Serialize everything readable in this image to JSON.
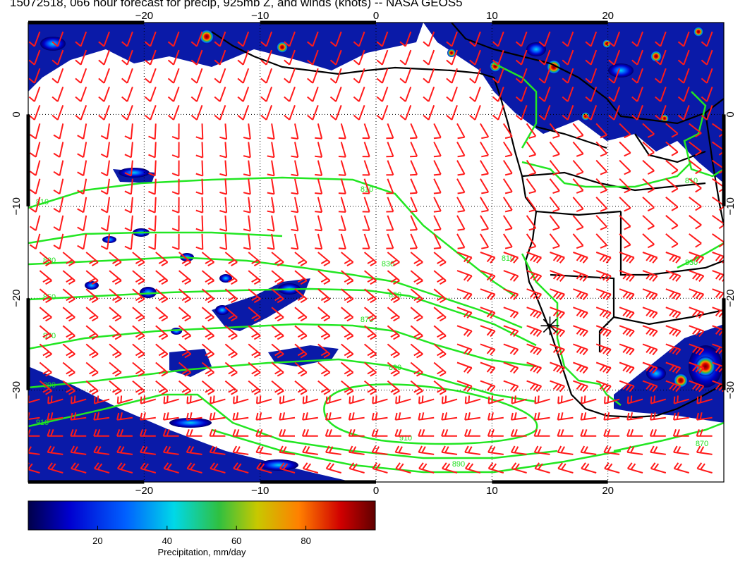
{
  "title": "15072518, 066 hour forecast for precip, 925mb Z, and winds (knots) -- NASA GEOS5",
  "map": {
    "lon_range": [
      -30,
      30
    ],
    "lat_range": [
      -40,
      10
    ],
    "lon_ticks": [
      -20,
      -10,
      0,
      10,
      20
    ],
    "lat_ticks": [
      0,
      -10,
      -20,
      -30
    ],
    "lon_tick_labels": [
      "−20",
      "−10",
      "0",
      "10",
      "20"
    ],
    "lat_tick_labels": [
      "0",
      "−10",
      "−20",
      "−30"
    ],
    "gridlines": "dotted",
    "wind_barb_color": "#ff1a1a",
    "contour_color": "#22e622",
    "coastline_color": "#000000"
  },
  "contours": {
    "unit": "925mb Z (m)",
    "labels": [
      "810",
      "810",
      "810",
      "810",
      "830",
      "830",
      "830",
      "850",
      "850",
      "870",
      "870",
      "890",
      "890",
      "890",
      "910",
      "910",
      "870"
    ]
  },
  "colorbar": {
    "label": "Precipitation, mm/day",
    "ticks": [
      20,
      40,
      60,
      80
    ],
    "tick_labels": [
      "20",
      "40",
      "60",
      "80"
    ],
    "range": [
      0,
      100
    ],
    "colors": [
      "#00008b",
      "#0000ff",
      "#0080ff",
      "#00e0e0",
      "#20c040",
      "#c0c000",
      "#ff8000",
      "#e00000",
      "#800000"
    ]
  },
  "marker": {
    "symbol": "asterisk",
    "lon": 15,
    "lat": -23
  }
}
